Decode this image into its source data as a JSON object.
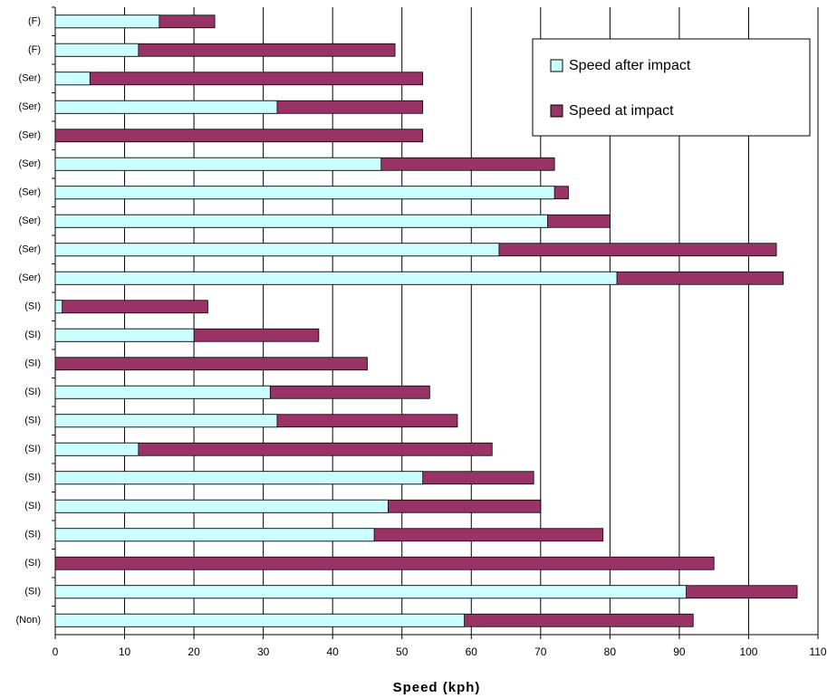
{
  "chart_data": {
    "type": "bar",
    "orientation": "horizontal",
    "overlay": true,
    "x_label": "Speed (kph)",
    "categories": [
      "(F)",
      "(F)",
      "(Ser)",
      "(Ser)",
      "(Ser)",
      "(Ser)",
      "(Ser)",
      "(Ser)",
      "(Ser)",
      "(Ser)",
      "(SI)",
      "(SI)",
      "(SI)",
      "(SI)",
      "(SI)",
      "(SI)",
      "(SI)",
      "(SI)",
      "(SI)",
      "(SI)",
      "(SI)",
      "(Non)"
    ],
    "series": [
      {
        "name": "Speed after impact",
        "color": "#ccffff",
        "values": [
          15,
          12,
          5,
          32,
          0,
          47,
          72,
          71,
          64,
          81,
          1,
          20,
          0,
          31,
          32,
          12,
          53,
          48,
          46,
          0,
          91,
          59
        ]
      },
      {
        "name": "Speed at impact",
        "color": "#993366",
        "values": [
          23,
          49,
          53,
          53,
          53,
          72,
          74,
          80,
          104,
          105,
          22,
          38,
          45,
          54,
          58,
          63,
          69,
          70,
          79,
          95,
          107,
          92
        ]
      }
    ],
    "xlim": [
      0,
      110
    ],
    "xticks": [
      0,
      10,
      20,
      30,
      40,
      50,
      60,
      70,
      80,
      90,
      100,
      110
    ],
    "grid": true
  }
}
